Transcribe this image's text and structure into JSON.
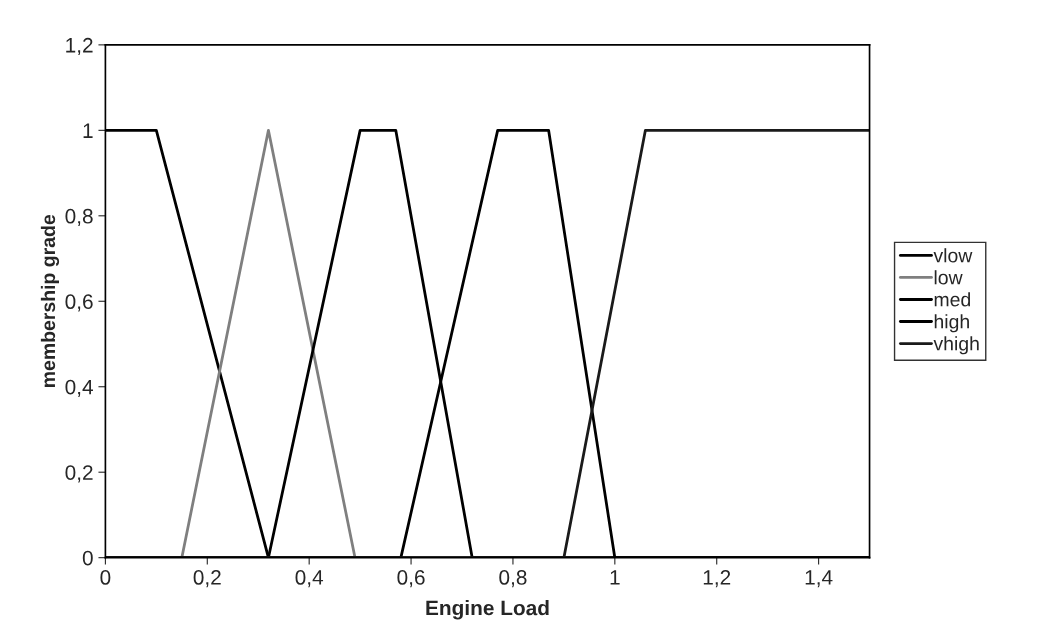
{
  "chart_data": {
    "type": "line",
    "xlabel": "Engine Load",
    "ylabel": "membership grade",
    "xlim": [
      0,
      1.5
    ],
    "ylim": [
      0,
      1.2
    ],
    "xticks": [
      0,
      {
        "value": 0.2,
        "label": "0,2"
      },
      {
        "value": 0.4,
        "label": "0,4"
      },
      {
        "value": 0.6,
        "label": "0,6"
      },
      {
        "value": 0.8,
        "label": "0,8"
      },
      1,
      {
        "value": 1.2,
        "label": "1,2"
      },
      {
        "value": 1.4,
        "label": "1,4"
      }
    ],
    "yticks": [
      0,
      {
        "value": 0.2,
        "label": "0,2"
      },
      {
        "value": 0.4,
        "label": "0,4"
      },
      {
        "value": 0.6,
        "label": "0,6"
      },
      {
        "value": 0.8,
        "label": "0,8"
      },
      1,
      {
        "value": 1.2,
        "label": "1,2"
      }
    ],
    "grid": false,
    "legend": "right",
    "marker": "none",
    "line_style": "solid",
    "series": [
      {
        "name": "vlow",
        "color": "#000000",
        "x": [
          0,
          0.1,
          0.32,
          1.5
        ],
        "values": [
          1,
          1,
          0,
          0
        ]
      },
      {
        "name": "low",
        "color": "#7f7f7f",
        "x": [
          0,
          0.15,
          0.32,
          0.49,
          1.5
        ],
        "values": [
          0,
          0,
          1,
          0,
          0
        ]
      },
      {
        "name": "med",
        "color": "#000000",
        "x": [
          0,
          0.32,
          0.5,
          0.57,
          0.72,
          1.5
        ],
        "values": [
          0,
          0,
          1,
          1,
          0,
          0
        ]
      },
      {
        "name": "high",
        "color": "#000000",
        "x": [
          0,
          0.58,
          0.77,
          0.87,
          1.0,
          1.5
        ],
        "values": [
          0,
          0,
          1,
          1,
          0,
          0
        ]
      },
      {
        "name": "vhigh",
        "color": "#1a1a1a",
        "x": [
          0,
          0.9,
          1.06,
          1.5
        ],
        "values": [
          0,
          0,
          1,
          1
        ]
      }
    ]
  }
}
